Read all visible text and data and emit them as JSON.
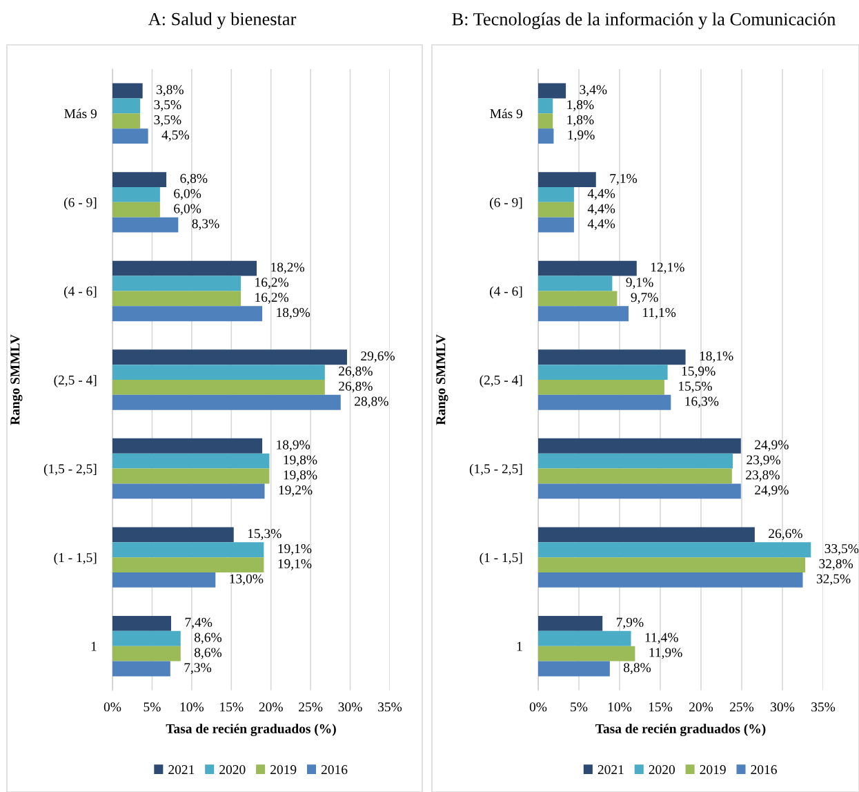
{
  "chart_data": [
    {
      "type": "bar",
      "orientation": "horizontal",
      "title": "A: Salud y bienestar",
      "xlabel": "Tasa de recién graduados (%)",
      "ylabel": "Rango SMMLV",
      "categories": [
        "Más 9",
        "(6 - 9]",
        "(4 - 6]",
        "(2,5 - 4]",
        "(1,5 - 2,5]",
        "(1 - 1,5]",
        "1"
      ],
      "series": [
        {
          "name": "2021",
          "color": "#2c4a72",
          "values": [
            3.8,
            6.8,
            18.2,
            29.6,
            18.9,
            15.3,
            7.4
          ],
          "value_labels": [
            "3,8%",
            "6,8%",
            "18,2%",
            "29,6%",
            "18,9%",
            "15,3%",
            "7,4%"
          ]
        },
        {
          "name": "2020",
          "color": "#4bacc6",
          "values": [
            3.5,
            6.0,
            16.2,
            26.8,
            19.8,
            19.1,
            8.6
          ],
          "value_labels": [
            "3,5%",
            "6,0%",
            "16,2%",
            "26,8%",
            "19,8%",
            "19,1%",
            "8,6%"
          ]
        },
        {
          "name": "2019",
          "color": "#9bbb59",
          "values": [
            3.5,
            6.0,
            16.2,
            26.8,
            19.8,
            19.1,
            8.6
          ],
          "value_labels": [
            "3,5%",
            "6,0%",
            "16,2%",
            "26,8%",
            "19,8%",
            "19,1%",
            "8,6%"
          ]
        },
        {
          "name": "2016",
          "color": "#4f81bd",
          "values": [
            4.5,
            8.3,
            18.9,
            28.8,
            19.2,
            13.0,
            7.3
          ],
          "value_labels": [
            "4,5%",
            "8,3%",
            "18,9%",
            "28,8%",
            "19,2%",
            "13,0%",
            "7,3%"
          ]
        }
      ],
      "xlim": [
        0,
        35
      ],
      "xticks": [
        {
          "value": 0,
          "label": "0%"
        },
        {
          "value": 5,
          "label": "5%"
        },
        {
          "value": 10,
          "label": "10%"
        },
        {
          "value": 15,
          "label": "15%"
        },
        {
          "value": 20,
          "label": "20%"
        },
        {
          "value": 25,
          "label": "25%"
        },
        {
          "value": 30,
          "label": "30%"
        },
        {
          "value": 35,
          "label": "35%"
        }
      ],
      "grid": "x",
      "legend": "bottom"
    },
    {
      "type": "bar",
      "orientation": "horizontal",
      "title": "B: Tecnologías de la información y la Comunicación",
      "xlabel": "Tasa de recién graduados (%)",
      "ylabel": "Rango SMMLV",
      "categories": [
        "Más 9",
        "(6 - 9]",
        "(4 - 6]",
        "(2,5 - 4]",
        "(1,5 - 2,5]",
        "(1 - 1,5]",
        "1"
      ],
      "series": [
        {
          "name": "2021",
          "color": "#2c4a72",
          "values": [
            3.4,
            7.1,
            12.1,
            18.1,
            24.9,
            26.6,
            7.9
          ],
          "value_labels": [
            "3,4%",
            "7,1%",
            "12,1%",
            "18,1%",
            "24,9%",
            "26,6%",
            "7,9%"
          ]
        },
        {
          "name": "2020",
          "color": "#4bacc6",
          "values": [
            1.8,
            4.4,
            9.1,
            15.9,
            23.9,
            33.5,
            11.4
          ],
          "value_labels": [
            "1,8%",
            "4,4%",
            "9,1%",
            "15,9%",
            "23,9%",
            "33,5%",
            "11,4%"
          ]
        },
        {
          "name": "2019",
          "color": "#9bbb59",
          "values": [
            1.8,
            4.4,
            9.7,
            15.5,
            23.8,
            32.8,
            11.9
          ],
          "value_labels": [
            "1,8%",
            "4,4%",
            "9,7%",
            "15,5%",
            "23,8%",
            "32,8%",
            "11,9%"
          ]
        },
        {
          "name": "2016",
          "color": "#4f81bd",
          "values": [
            1.9,
            4.4,
            11.1,
            16.3,
            24.9,
            32.5,
            8.8
          ],
          "value_labels": [
            "1,9%",
            "4,4%",
            "11,1%",
            "16,3%",
            "24,9%",
            "32,5%",
            "8,8%"
          ]
        }
      ],
      "xlim": [
        0,
        35
      ],
      "xticks": [
        {
          "value": 0,
          "label": "0%"
        },
        {
          "value": 5,
          "label": "5%"
        },
        {
          "value": 10,
          "label": "10%"
        },
        {
          "value": 15,
          "label": "15%"
        },
        {
          "value": 20,
          "label": "20%"
        },
        {
          "value": 25,
          "label": "25%"
        },
        {
          "value": 30,
          "label": "30%"
        },
        {
          "value": 35,
          "label": "35%"
        }
      ],
      "grid": "x",
      "legend": "bottom"
    }
  ]
}
